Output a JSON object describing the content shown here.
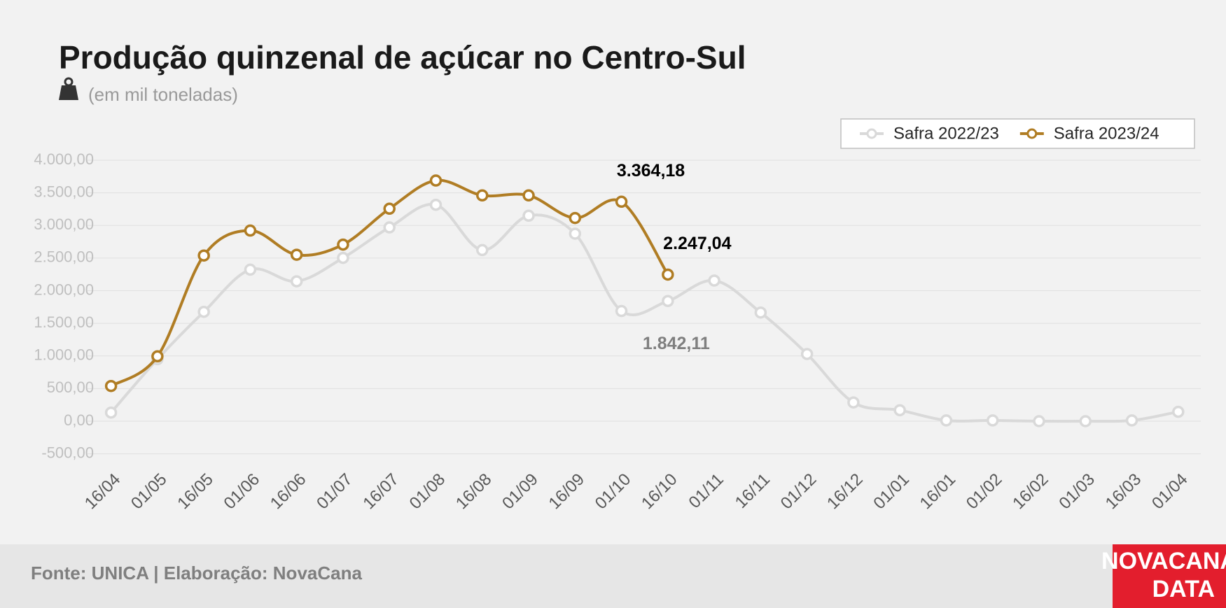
{
  "chart_data": {
    "type": "line",
    "title": "Produção quinzenal de açúcar no Centro-Sul",
    "subtitle": "(em mil toneladas)",
    "source": "Fonte: UNICA | Elaboração: NovaCana",
    "logo": [
      "NOVACANA",
      "DATA"
    ],
    "categories": [
      "16/04",
      "01/05",
      "16/05",
      "01/06",
      "16/06",
      "01/07",
      "16/07",
      "01/08",
      "16/08",
      "01/09",
      "16/09",
      "01/10",
      "16/10",
      "01/11",
      "16/11",
      "01/12",
      "16/12",
      "01/01",
      "16/01",
      "01/02",
      "16/02",
      "01/03",
      "16/03",
      "01/04"
    ],
    "series": [
      {
        "name": "Safra 2022/23",
        "color": "#d9d9d9",
        "label_color": "#7f7f7f",
        "values": [
          132,
          950,
          1676,
          2323,
          2144,
          2503,
          2970,
          3317,
          2623,
          3150,
          2874,
          1689,
          1842.11,
          2156,
          1665,
          1030,
          287,
          168,
          12,
          12,
          0,
          0,
          12,
          144
        ],
        "value_labels": [
          null,
          null,
          null,
          null,
          null,
          null,
          null,
          null,
          null,
          null,
          null,
          null,
          "1.842,11",
          null,
          null,
          null,
          null,
          null,
          null,
          null,
          null,
          null,
          null,
          null
        ]
      },
      {
        "name": "Safra 2023/24",
        "color": "#b07d24",
        "label_color": "#000000",
        "values": [
          539,
          994,
          2539,
          2922,
          2551,
          2707,
          3257,
          3689,
          3461,
          3461,
          3114,
          3364.18,
          2247.04,
          null,
          null,
          null,
          null,
          null,
          null,
          null,
          null,
          null,
          null,
          null
        ],
        "value_labels": [
          null,
          null,
          null,
          null,
          null,
          null,
          null,
          null,
          null,
          null,
          null,
          "3.364,18",
          "2.247,04",
          null,
          null,
          null,
          null,
          null,
          null,
          null,
          null,
          null,
          null,
          null
        ]
      }
    ],
    "ylim": [
      -500,
      4000
    ],
    "yticks": [
      {
        "value": -500,
        "label": "-500,00"
      },
      {
        "value": 0,
        "label": "0,00"
      },
      {
        "value": 500,
        "label": "500,00"
      },
      {
        "value": 1000,
        "label": "1.000,00"
      },
      {
        "value": 1500,
        "label": "1.500,00"
      },
      {
        "value": 2000,
        "label": "2.000,00"
      },
      {
        "value": 2500,
        "label": "2.500,00"
      },
      {
        "value": 3000,
        "label": "3.000,00"
      },
      {
        "value": 3500,
        "label": "3.500,00"
      },
      {
        "value": 4000,
        "label": "4.000,00"
      }
    ],
    "grid": true,
    "legend": "top-right"
  }
}
